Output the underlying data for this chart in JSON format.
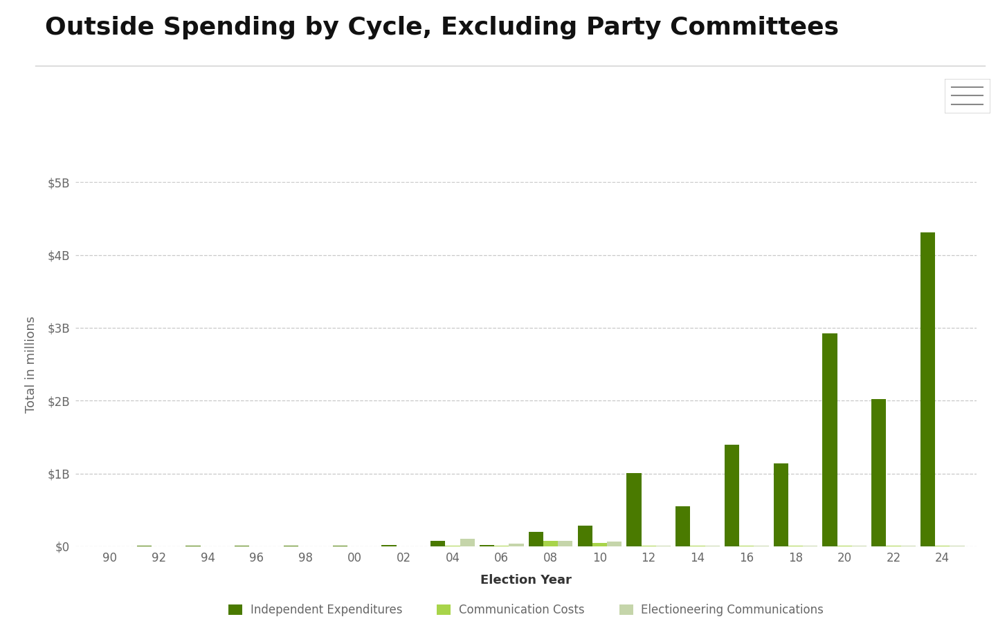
{
  "title": "Outside Spending by Cycle, Excluding Party Committees",
  "xlabel": "Election Year",
  "ylabel": "Total in millions",
  "years": [
    "90",
    "92",
    "94",
    "96",
    "98",
    "00",
    "02",
    "04",
    "06",
    "08",
    "10",
    "12",
    "14",
    "16",
    "18",
    "20",
    "22",
    "24"
  ],
  "independent_expenditures": [
    4,
    7,
    5,
    10,
    7,
    13,
    16,
    80,
    20,
    195,
    280,
    1010,
    555,
    1400,
    1140,
    2920,
    2020,
    4310
  ],
  "communication_costs": [
    1,
    1,
    1,
    1,
    1,
    1,
    1,
    10,
    5,
    75,
    50,
    10,
    5,
    10,
    6,
    12,
    10,
    12
  ],
  "electioneering_communications": [
    0,
    0,
    0,
    0,
    0,
    0,
    0,
    100,
    40,
    80,
    70,
    12,
    8,
    12,
    8,
    12,
    8,
    12
  ],
  "color_independent": "#4a7a00",
  "color_communication": "#a8d44a",
  "color_electioneering": "#c5d5aa",
  "ylim_max": 5000,
  "yticks": [
    0,
    1000,
    2000,
    3000,
    4000,
    5000
  ],
  "ytick_labels": [
    "$0",
    "$1B",
    "$2B",
    "$3B",
    "$4B",
    "$5B"
  ],
  "bg_color": "#ffffff",
  "title_fontsize": 26,
  "label_fontsize": 13,
  "tick_fontsize": 12,
  "legend_fontsize": 12,
  "grid_color": "#c8c8c8",
  "tick_color": "#666666",
  "title_color": "#111111",
  "separator_color": "#cccccc"
}
